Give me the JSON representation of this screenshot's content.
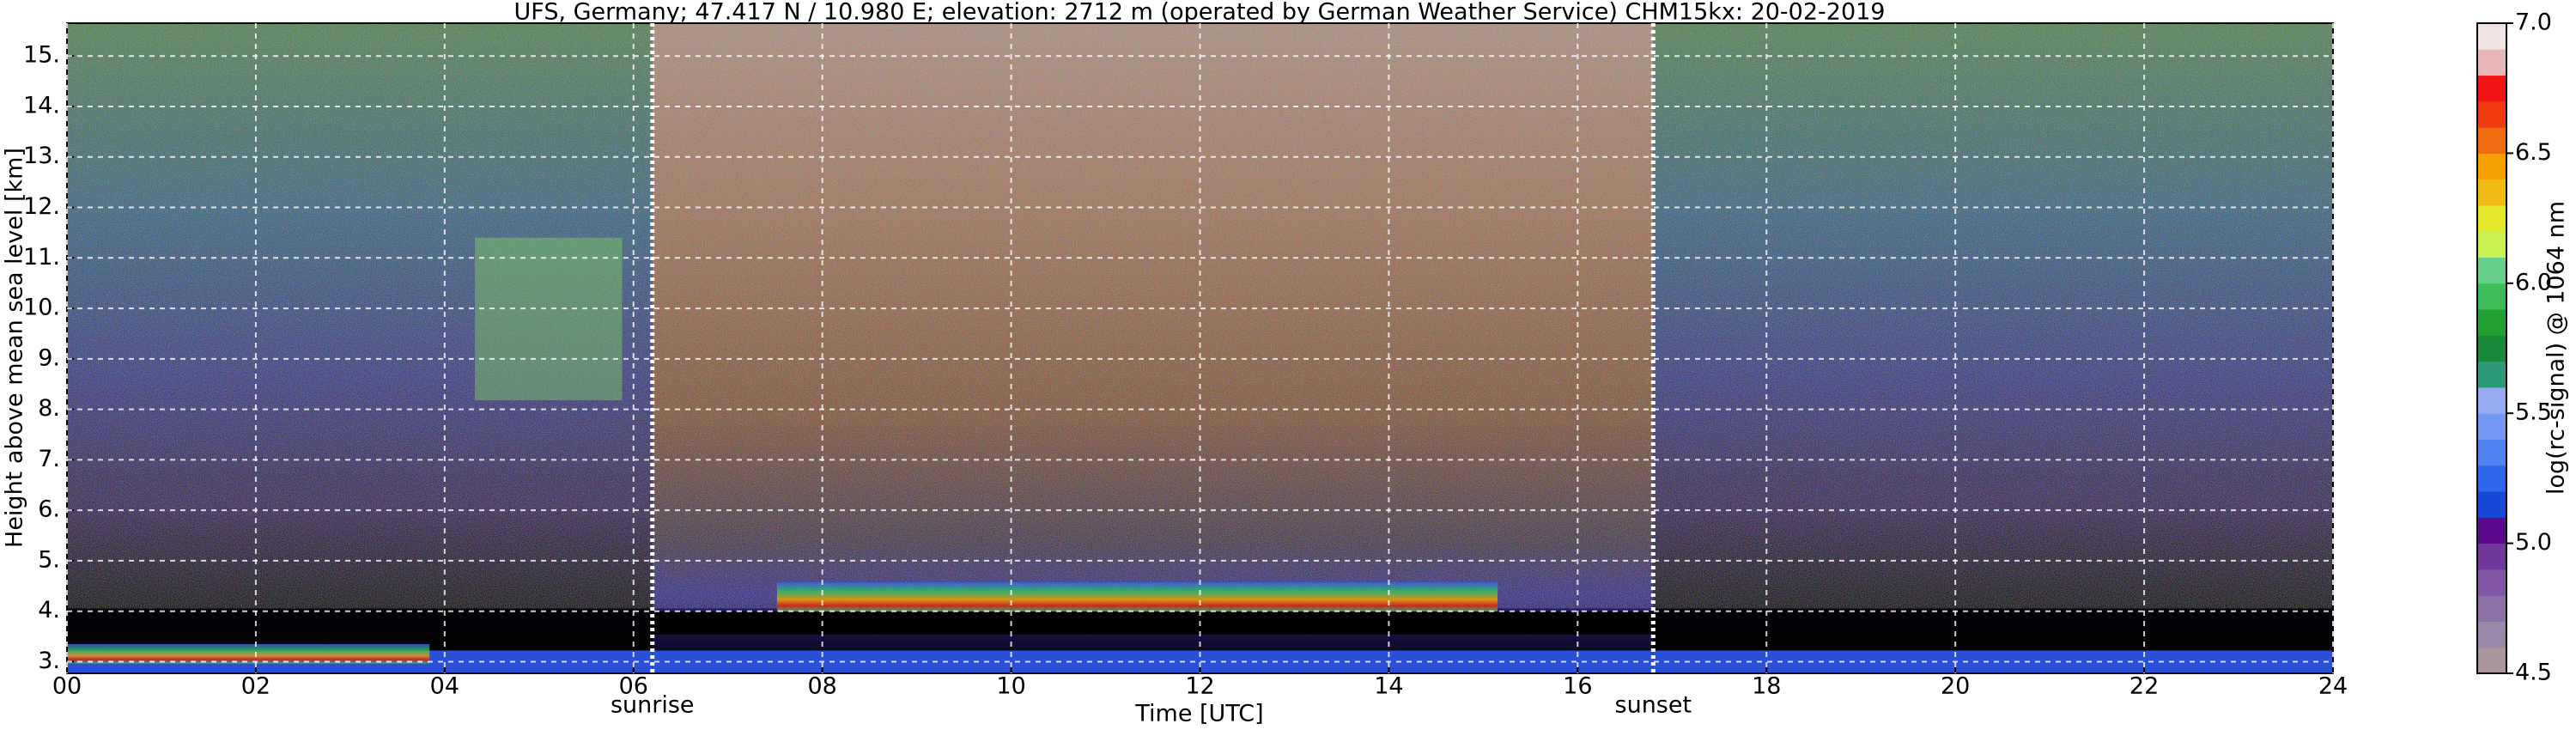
{
  "chart_data": {
    "type": "heatmap",
    "title": "UFS, Germany; 47.417 N / 10.980 E; elevation: 2712 m  (operated by German Weather Service)    CHM15kx: 20-02-2019",
    "x_label": "Time [UTC]",
    "y_label": "Height above mean sea level [km]",
    "xlim": [
      0,
      24
    ],
    "xticks": [
      {
        "value": 0,
        "label": "00"
      },
      {
        "value": 2,
        "label": "02"
      },
      {
        "value": 4,
        "label": "04"
      },
      {
        "value": 6,
        "label": "06"
      },
      {
        "value": 8,
        "label": "08"
      },
      10,
      12,
      14,
      16,
      18,
      20,
      22,
      24
    ],
    "ylim": [
      2.77,
      15.65
    ],
    "yticks": [
      {
        "value": 3,
        "label": "3."
      },
      {
        "value": 4,
        "label": "4."
      },
      {
        "value": 5,
        "label": "5."
      },
      {
        "value": 6,
        "label": "6."
      },
      {
        "value": 7,
        "label": "7."
      },
      {
        "value": 8,
        "label": "8."
      },
      {
        "value": 9,
        "label": "9."
      },
      {
        "value": 10,
        "label": "10."
      },
      {
        "value": 11,
        "label": "11."
      },
      {
        "value": 12,
        "label": "12."
      },
      {
        "value": 13,
        "label": "13."
      },
      {
        "value": 14,
        "label": "14."
      },
      {
        "value": 15,
        "label": "15."
      }
    ],
    "grid": true,
    "annotations": [
      {
        "text": "sunrise",
        "x": 6.2
      },
      {
        "text": "sunset",
        "x": 16.8
      }
    ],
    "colorbar": {
      "label": "log(rc-signal) @ 1064 nm",
      "clim": [
        4.5,
        7.0
      ],
      "ticks": [
        4.5,
        {
          "value": 5.0,
          "label": "5.0"
        },
        5.5,
        {
          "value": 6.0,
          "label": "6.0"
        },
        6.5,
        {
          "value": 7.0,
          "label": "7.0"
        }
      ],
      "colors": [
        "#a8969c",
        "#9a86a6",
        "#8e70a8",
        "#8258a6",
        "#70389a",
        "#5c0a8c",
        "#1648d8",
        "#2e66ec",
        "#5082f2",
        "#7498f4",
        "#98aaf2",
        "#2e9a7a",
        "#1a8a3a",
        "#22a032",
        "#3cbc58",
        "#66d08a",
        "#c8f050",
        "#e4e828",
        "#f0bc14",
        "#f8a000",
        "#f06a10",
        "#f03a10",
        "#f01414",
        "#e8b8b8",
        "#f0e4e4"
      ]
    }
  }
}
